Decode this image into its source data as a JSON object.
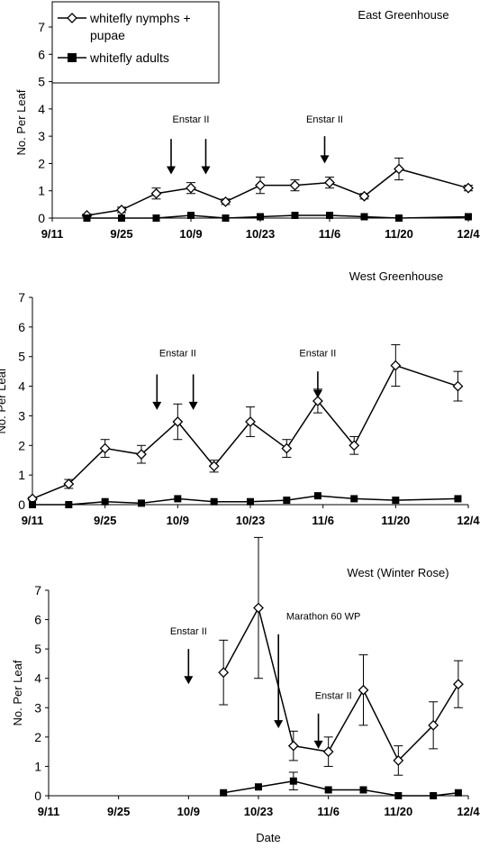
{
  "legend": {
    "entries": [
      {
        "label_line1": "whitefly nymphs +",
        "label_line2": "pupae",
        "marker": "open-diamond"
      },
      {
        "label_line1": "whitefly adults",
        "label_line2": "",
        "marker": "filled-square"
      }
    ]
  },
  "xlabel": "Date",
  "chart_data": [
    {
      "type": "line",
      "title": "East Greenhouse",
      "ylabel": "No. Per Leaf",
      "ylim": [
        0,
        7
      ],
      "yticks": [
        0,
        1,
        2,
        3,
        4,
        5,
        6,
        7
      ],
      "x_unit": "days since 9/11",
      "xlim": [
        0,
        84
      ],
      "xtick_labels": [
        "9/11",
        "9/25",
        "10/9",
        "10/23",
        "11/6",
        "11/20",
        "12/4"
      ],
      "series": [
        {
          "name": "whitefly nymphs + pupae",
          "marker": "open-diamond",
          "x": [
            7,
            14,
            21,
            28,
            35,
            42,
            49,
            56,
            63,
            70,
            84
          ],
          "y": [
            0.1,
            0.3,
            0.9,
            1.1,
            0.6,
            1.2,
            1.2,
            1.3,
            0.8,
            1.8,
            1.1
          ],
          "err": [
            0.05,
            0.1,
            0.2,
            0.2,
            0.1,
            0.3,
            0.2,
            0.2,
            0.1,
            0.4,
            0.1
          ]
        },
        {
          "name": "whitefly adults",
          "marker": "filled-square",
          "x": [
            7,
            14,
            21,
            28,
            35,
            42,
            49,
            56,
            63,
            70,
            84
          ],
          "y": [
            0.0,
            0.0,
            0.0,
            0.1,
            0.0,
            0.05,
            0.1,
            0.1,
            0.05,
            0.0,
            0.05
          ],
          "err": [
            0,
            0,
            0,
            0,
            0,
            0,
            0,
            0,
            0,
            0,
            0
          ]
        }
      ],
      "annotations": [
        {
          "text": "Enstar II",
          "arrow_x": [
            24,
            31
          ],
          "label_x": 28,
          "label_y": 3.5,
          "arrow_from": 2.9,
          "arrow_to": 1.6
        },
        {
          "text": "Enstar II",
          "arrow_x": [
            55
          ],
          "label_x": 55,
          "label_y": 3.5,
          "arrow_from": 3.0,
          "arrow_to": 2.0
        }
      ]
    },
    {
      "type": "line",
      "title": "West Greenhouse",
      "ylabel": "No. Per Leaf",
      "ylim": [
        0,
        7
      ],
      "yticks": [
        0,
        1,
        2,
        3,
        4,
        5,
        6,
        7
      ],
      "x_unit": "days since 9/11",
      "xlim": [
        0,
        84
      ],
      "xtick_labels": [
        "9/11",
        "9/25",
        "10/9",
        "10/23",
        "11/6",
        "11/20",
        "12/4"
      ],
      "series": [
        {
          "name": "whitefly nymphs + pupae",
          "marker": "open-diamond",
          "x": [
            0,
            7,
            14,
            21,
            28,
            35,
            42,
            49,
            55,
            62,
            70,
            82
          ],
          "y": [
            0.2,
            0.7,
            1.9,
            1.7,
            2.8,
            1.3,
            2.8,
            1.9,
            3.5,
            2.0,
            4.7,
            4.0
          ],
          "err": [
            0.05,
            0.15,
            0.3,
            0.3,
            0.6,
            0.2,
            0.5,
            0.3,
            0.4,
            0.3,
            0.7,
            0.5
          ]
        },
        {
          "name": "whitefly adults",
          "marker": "filled-square",
          "x": [
            0,
            7,
            14,
            21,
            28,
            35,
            42,
            49,
            55,
            62,
            70,
            82
          ],
          "y": [
            0.0,
            0.0,
            0.1,
            0.05,
            0.2,
            0.1,
            0.1,
            0.15,
            0.3,
            0.2,
            0.15,
            0.2
          ],
          "err": [
            0,
            0,
            0,
            0,
            0,
            0,
            0,
            0,
            0,
            0,
            0,
            0
          ]
        }
      ],
      "annotations": [
        {
          "text": "Enstar II",
          "arrow_x": [
            24,
            31
          ],
          "label_x": 28,
          "label_y": 5.0,
          "arrow_from": 4.4,
          "arrow_to": 3.2
        },
        {
          "text": "Enstar II",
          "arrow_x": [
            55
          ],
          "label_x": 55,
          "label_y": 5.0,
          "arrow_from": 4.5,
          "arrow_to": 3.6
        }
      ]
    },
    {
      "type": "line",
      "title": "West (Winter Rose)",
      "ylabel": "No. Per Leaf",
      "xlabel": "Date",
      "ylim": [
        0,
        7
      ],
      "yticks": [
        0,
        1,
        2,
        3,
        4,
        5,
        6,
        7
      ],
      "x_unit": "days since 9/11",
      "xlim": [
        0,
        84
      ],
      "xtick_labels": [
        "9/11",
        "9/25",
        "10/9",
        "10/23",
        "11/6",
        "11/20",
        "12/4"
      ],
      "series": [
        {
          "name": "whitefly nymphs + pupae",
          "marker": "open-diamond",
          "x": [
            35,
            42,
            49,
            56,
            63,
            70,
            77,
            82
          ],
          "y": [
            4.2,
            6.4,
            1.7,
            1.5,
            3.6,
            1.2,
            2.4,
            3.8
          ],
          "err": [
            1.1,
            2.4,
            0.5,
            0.5,
            1.2,
            0.5,
            0.8,
            0.8
          ]
        },
        {
          "name": "whitefly adults",
          "marker": "filled-square",
          "x": [
            35,
            42,
            49,
            56,
            63,
            70,
            77,
            82
          ],
          "y": [
            0.1,
            0.3,
            0.5,
            0.2,
            0.2,
            0.0,
            0.0,
            0.1
          ],
          "err": [
            0,
            0,
            0.3,
            0,
            0,
            0,
            0,
            0
          ]
        }
      ],
      "annotations": [
        {
          "text": "Enstar II",
          "arrow_x": [
            28
          ],
          "label_x": 28,
          "label_y": 5.5,
          "arrow_from": 5.0,
          "arrow_to": 3.8
        },
        {
          "text": "Marathon 60 WP",
          "arrow_x": [
            46
          ],
          "label_x": 55,
          "label_y": 6.0,
          "arrow_from": 5.5,
          "arrow_to": 2.3
        },
        {
          "text": "Enstar II",
          "arrow_x": [
            54
          ],
          "label_x": 57,
          "label_y": 3.3,
          "arrow_from": 2.8,
          "arrow_to": 1.6
        }
      ]
    }
  ]
}
